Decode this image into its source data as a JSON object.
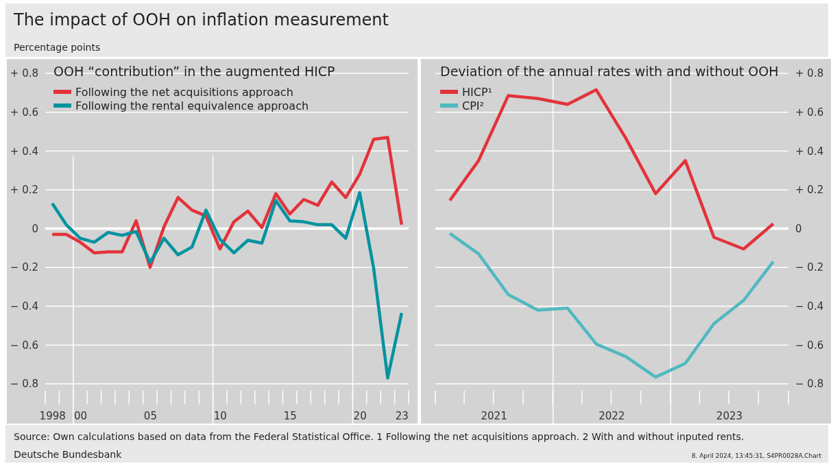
{
  "chart_data": [
    {
      "type": "other",
      "title": "The impact of OOH on inflation measurement",
      "subtitle": "Percentage points",
      "annotations": [
        "Source: Own calculations based on data from the Federal Statistical Office. 1 Following the net acquisitions approach. 2 With and without inputed rents.",
        "Deutsche Bundesbank",
        "8. April 2024, 13:45:31, S4PR0028A.Chart"
      ]
    },
    {
      "type": "line",
      "title": "OOH “contribution” in the augmented HICP",
      "categories": [
        "1998",
        null,
        "00",
        null,
        null,
        null,
        null,
        "05",
        null,
        null,
        null,
        null,
        "10",
        null,
        null,
        null,
        null,
        "15",
        null,
        null,
        null,
        null,
        "20",
        null,
        null,
        "23"
      ],
      "series": [
        {
          "name": "Following the net acquisitions approach",
          "color": "#e3323b",
          "values": [
            -0.03,
            -0.03,
            -0.07,
            -0.125,
            -0.12,
            -0.12,
            0.04,
            -0.2,
            0.01,
            0.16,
            0.095,
            0.065,
            -0.105,
            0.035,
            0.09,
            0.005,
            0.18,
            0.075,
            0.15,
            0.12,
            0.24,
            0.16,
            0.28,
            0.46,
            0.47,
            0.02
          ]
        },
        {
          "name": "Following the rental equivalence approach",
          "color": "#00939f",
          "values": [
            0.13,
            0.02,
            -0.05,
            -0.07,
            -0.02,
            -0.035,
            -0.015,
            -0.175,
            -0.05,
            -0.135,
            -0.095,
            0.095,
            -0.055,
            -0.125,
            -0.06,
            -0.075,
            0.145,
            0.04,
            0.035,
            0.02,
            0.02,
            -0.05,
            0.185,
            -0.205,
            -0.77,
            -0.435
          ]
        }
      ],
      "ylim": [
        -0.8,
        0.8
      ],
      "yticks": [
        {
          "value": -0.8,
          "label": "− 0.8"
        },
        {
          "value": -0.6,
          "label": "− 0.6"
        },
        {
          "value": -0.4,
          "label": "− 0.4"
        },
        {
          "value": -0.2,
          "label": "− 0.2"
        },
        0,
        {
          "value": 0.2,
          "label": "+ 0.2"
        },
        {
          "value": 0.4,
          "label": "+ 0.4"
        },
        {
          "value": 0.6,
          "label": "+ 0.6"
        },
        {
          "value": 0.8,
          "label": "+ 0.8"
        }
      ],
      "grid": "y",
      "legend": "top left"
    },
    {
      "type": "line",
      "title": "Deviation of the annual rates with and without OOH",
      "x": [
        "2021-02-15",
        "2021-05-15",
        "2021-08-15",
        "2021-11-15",
        "2022-02-15",
        "2022-05-15",
        "2022-08-15",
        "2022-11-15",
        "2023-02-15",
        "2023-05-15",
        "2023-08-15",
        "2023-11-15"
      ],
      "series": [
        {
          "name": "HICP¹",
          "color": "#e3323b",
          "values": [
            0.145,
            0.35,
            0.685,
            0.67,
            0.64,
            0.715,
            0.465,
            0.18,
            0.35,
            -0.045,
            -0.105,
            0.025
          ]
        },
        {
          "name": "CPI²",
          "color": "#4fb9c0",
          "values": [
            -0.025,
            -0.13,
            -0.34,
            -0.42,
            -0.41,
            -0.595,
            -0.66,
            -0.765,
            -0.695,
            -0.49,
            -0.37,
            -0.17
          ]
        }
      ],
      "xlim": [
        "2021-01-01",
        "2024-01-01"
      ],
      "xticks": [
        {
          "value": "2021-07-01",
          "label": "2021"
        },
        {
          "value": "2022-07-01",
          "label": "2022"
        },
        {
          "value": "2023-07-01",
          "label": "2023"
        }
      ],
      "ylim": [
        -0.8,
        0.8
      ],
      "yticks": [
        {
          "value": -0.8,
          "label": "− 0.8"
        },
        {
          "value": -0.6,
          "label": "− 0.6"
        },
        {
          "value": -0.4,
          "label": "− 0.4"
        },
        {
          "value": -0.2,
          "label": "− 0.2"
        },
        0,
        {
          "value": 0.2,
          "label": "+ 0.2"
        },
        {
          "value": 0.4,
          "label": "+ 0.4"
        },
        {
          "value": 0.6,
          "label": "+ 0.6"
        },
        {
          "value": 0.8,
          "label": "+ 0.8"
        }
      ],
      "ref_lines": [
        {
          "axis": "x",
          "value": "2022-01-01",
          "color": "#ffffff"
        },
        {
          "axis": "x",
          "value": "2023-01-01",
          "color": "#ffffff"
        }
      ],
      "grid": "y",
      "legend": "top left"
    }
  ]
}
